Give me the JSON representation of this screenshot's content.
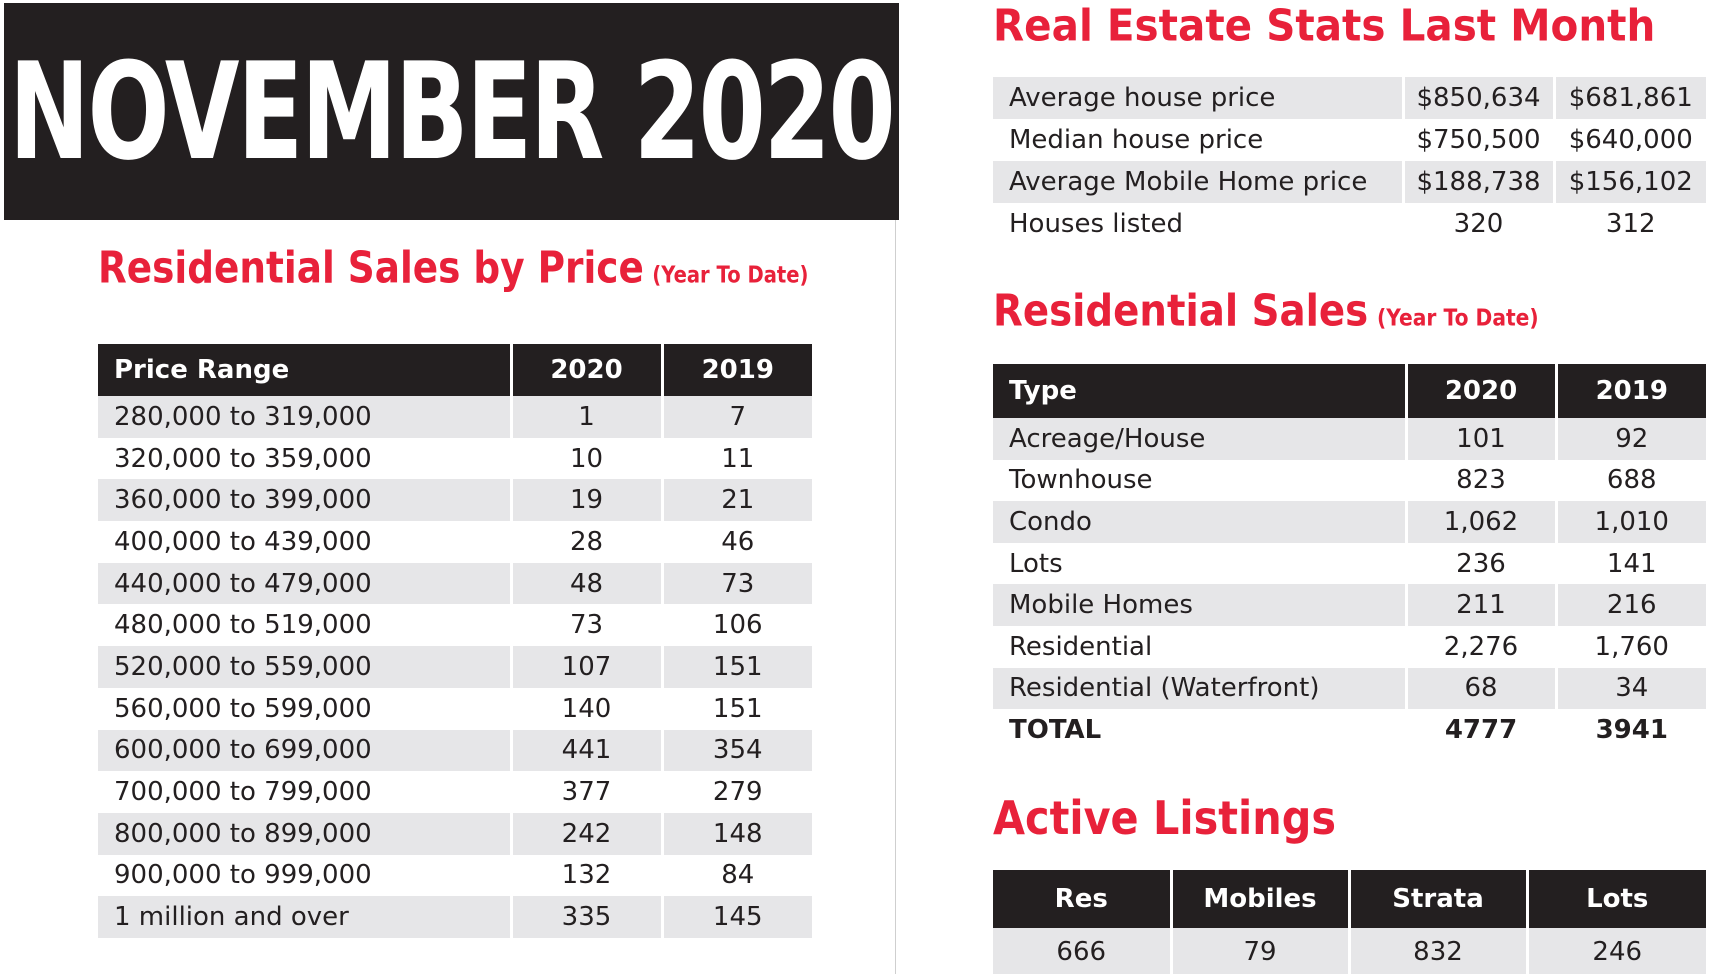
{
  "banner": {
    "title": "NOVEMBER 2020"
  },
  "price_section": {
    "title": "Residential Sales by Price",
    "subtitle": "(Year To Date)",
    "headers": [
      "Price Range",
      "2020",
      "2019"
    ],
    "rows": [
      [
        "280,000 to 319,000",
        "1",
        "7"
      ],
      [
        "320,000 to 359,000",
        "10",
        "11"
      ],
      [
        "360,000 to 399,000",
        "19",
        "21"
      ],
      [
        "400,000 to 439,000",
        "28",
        "46"
      ],
      [
        "440,000 to 479,000",
        "48",
        "73"
      ],
      [
        "480,000 to 519,000",
        "73",
        "106"
      ],
      [
        "520,000 to 559,000",
        "107",
        "151"
      ],
      [
        "560,000 to 599,000",
        "140",
        "151"
      ],
      [
        "600,000 to 699,000",
        "441",
        "354"
      ],
      [
        "700,000 to 799,000",
        "377",
        "279"
      ],
      [
        "800,000 to 899,000",
        "242",
        "148"
      ],
      [
        "900,000 to 999,000",
        "132",
        "84"
      ],
      [
        "1 million and over",
        "335",
        "145"
      ]
    ]
  },
  "stats_section": {
    "title": "Real Estate Stats Last Month",
    "rows": [
      [
        "Average house price",
        "$850,634",
        "$681,861"
      ],
      [
        "Median house price",
        "$750,500",
        "$640,000"
      ],
      [
        "Average Mobile Home price",
        "$188,738",
        "$156,102"
      ],
      [
        "Houses listed",
        "320",
        "312"
      ]
    ]
  },
  "sales_section": {
    "title": "Residential Sales",
    "subtitle": "(Year To Date)",
    "headers": [
      "Type",
      "2020",
      "2019"
    ],
    "rows": [
      [
        "Acreage/House",
        "101",
        "92"
      ],
      [
        "Townhouse",
        "823",
        "688"
      ],
      [
        "Condo",
        "1,062",
        "1,010"
      ],
      [
        "Lots",
        "236",
        "141"
      ],
      [
        "Mobile Homes",
        "211",
        "216"
      ],
      [
        "Residential",
        "2,276",
        "1,760"
      ],
      [
        "Residential (Waterfront)",
        "68",
        "34"
      ],
      [
        "TOTAL",
        "4777",
        "3941"
      ]
    ]
  },
  "active_section": {
    "title": "Active Listings",
    "headers": [
      "Res",
      "Mobiles",
      "Strata",
      "Lots"
    ],
    "values": [
      "666",
      "79",
      "832",
      "246"
    ]
  },
  "colors": {
    "accent": "#e8213a",
    "dark": "#231f20",
    "row_shade": "#e6e6e8"
  }
}
